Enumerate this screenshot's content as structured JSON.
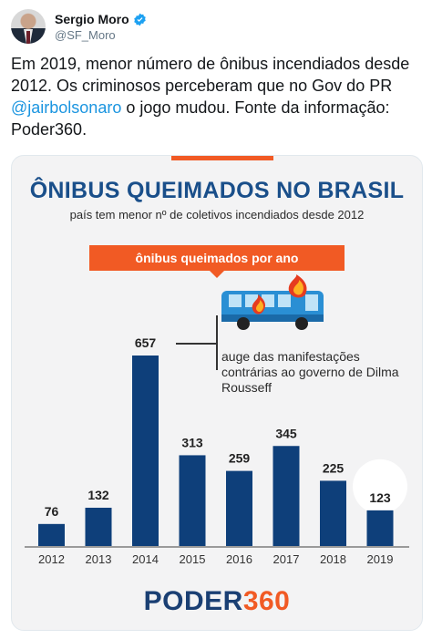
{
  "tweet": {
    "author_name": "Sergio Moro",
    "handle": "@SF_Moro",
    "text_part1": "Em 2019, menor número de ônibus incendiados desde 2012. Os criminosos perceberam que no Gov do PR ",
    "mention": "@jairbolsonaro",
    "text_part2": " o jogo mudou. Fonte da informação: Poder360."
  },
  "infographic": {
    "title": "ÔNIBUS QUEIMADOS NO BRASIL",
    "subtitle": "país tem menor nº de coletivos incendiados desde 2012",
    "band_label": "ônibus queimados por ano",
    "annotation": "auge das manifestações contrárias ao governo de Dilma Rousseff",
    "logo_main": "PODER",
    "logo_suffix": "360"
  },
  "chart_data": {
    "type": "bar",
    "categories": [
      "2012",
      "2013",
      "2014",
      "2015",
      "2016",
      "2017",
      "2018",
      "2019"
    ],
    "values": [
      76,
      132,
      657,
      313,
      259,
      345,
      225,
      123
    ],
    "title": "ÔNIBUS QUEIMADOS NO BRASIL",
    "subtitle": "país tem menor nº de coletivos incendiados desde 2012",
    "ylim": [
      0,
      657
    ],
    "grid": false,
    "highlight_category": "2019"
  },
  "colors": {
    "bar": "#0e3f7a",
    "accent": "#f15a24",
    "title": "#1a4f8a",
    "mention": "#1b95e0"
  }
}
